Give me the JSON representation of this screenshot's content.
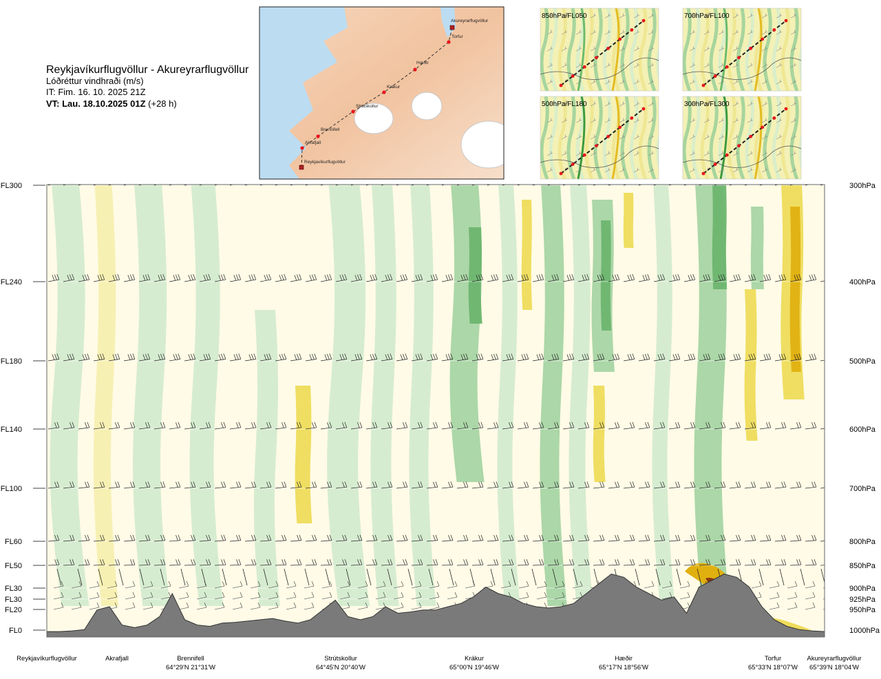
{
  "header": {
    "route_title": "Reykjavíkurflugvöllur - Akureyrarflugvöllur",
    "variable": "Lóðréttur vindhraði (m/s)",
    "issued": "IT: Fim. 16. 10. 2025 21Z",
    "valid_bold": "VT: Lau. 18.10.2025 01Z",
    "valid_offset": " (+28 h)"
  },
  "route_map": {
    "points": [
      {
        "label": "Reykjavíkurflugvöllur",
        "marker": "square"
      },
      {
        "label": "Akrafjall",
        "marker": "dot"
      },
      {
        "label": "Brennifell",
        "marker": "dot"
      },
      {
        "label": "Strútskollur",
        "marker": "dot"
      },
      {
        "label": "Krákur",
        "marker": "dot"
      },
      {
        "label": "Hæðir",
        "marker": "dot"
      },
      {
        "label": "Torfur",
        "marker": "dot"
      },
      {
        "label": "Akureyrarflugvöllur",
        "marker": "square"
      }
    ]
  },
  "level_maps": [
    {
      "label": "850hPa/FL050"
    },
    {
      "label": "700hPa/FL100"
    },
    {
      "label": "500hPa/FL180"
    },
    {
      "label": "300hPa/FL300"
    }
  ],
  "colors": {
    "updraft_1": "#d4ebcf",
    "updraft_2": "#a8d5a4",
    "updraft_3": "#6db56f",
    "updraft_4": "#2e8b3c",
    "downdraft_1": "#f7efb0",
    "downdraft_2": "#eedc5a",
    "downdraft_3": "#e0b010",
    "downdraft_4": "#8b3a10",
    "neutral": "#fffbe6",
    "terrain": "#7a7a7a",
    "route_line": "#333333",
    "route_point": "#e8141c"
  },
  "chart_data": {
    "type": "heatmap",
    "title": "Reykjavíkurflugvöllur - Akureyrarflugvöllur",
    "variable": "Lóðréttur vindhraði (m/s)",
    "left_axis_levels": [
      "FL300",
      "FL240",
      "FL180",
      "FL140",
      "FL100",
      "FL60",
      "FL50",
      "FL30",
      "FL30",
      "FL20",
      "FL0"
    ],
    "right_axis_levels": [
      "300hPa",
      "400hPa",
      "500hPa",
      "600hPa",
      "700hPa",
      "800hPa",
      "850hPa",
      "900hPa",
      "925hPa",
      "950hPa",
      "1000hPa"
    ],
    "pressure_hpa": [
      300,
      400,
      500,
      600,
      700,
      800,
      850,
      900,
      925,
      950,
      1000
    ],
    "waypoints": [
      {
        "name": "Reykjavíkurflugvöllur",
        "coord": ""
      },
      {
        "name": "Akrafjall",
        "coord": ""
      },
      {
        "name": "Brennifell",
        "coord": "64°29'N 21°31'W"
      },
      {
        "name": "Strútskollur",
        "coord": "64°45'N 20°40'W"
      },
      {
        "name": "Krákur",
        "coord": "65°00'N 19°46'W"
      },
      {
        "name": "Hæðir",
        "coord": "65°17'N 18°56'W"
      },
      {
        "name": "Torfur",
        "coord": "65°33'N 18°07'W"
      },
      {
        "name": "Akureyrarflugvöllur",
        "coord": "65°39'N 18°04'W"
      }
    ],
    "color_scale": [
      "downdraft_4",
      "downdraft_3",
      "downdraft_2",
      "downdraft_1",
      "neutral",
      "updraft_1",
      "updraft_2",
      "updraft_3",
      "updraft_4"
    ],
    "terrain_profile_rel": [
      0.02,
      0.02,
      0.03,
      0.05,
      0.35,
      0.4,
      0.12,
      0.08,
      0.12,
      0.25,
      0.6,
      0.2,
      0.12,
      0.1,
      0.15,
      0.16,
      0.18,
      0.2,
      0.22,
      0.18,
      0.15,
      0.2,
      0.35,
      0.5,
      0.25,
      0.2,
      0.25,
      0.4,
      0.3,
      0.32,
      0.35,
      0.35,
      0.4,
      0.45,
      0.55,
      0.7,
      0.6,
      0.55,
      0.45,
      0.4,
      0.38,
      0.4,
      0.45,
      0.6,
      0.75,
      0.9,
      0.85,
      0.7,
      0.6,
      0.5,
      0.55,
      0.3,
      0.7,
      0.8,
      0.9,
      0.85,
      0.7,
      0.4,
      0.2,
      0.1,
      0.05,
      0.03,
      0.02
    ]
  }
}
